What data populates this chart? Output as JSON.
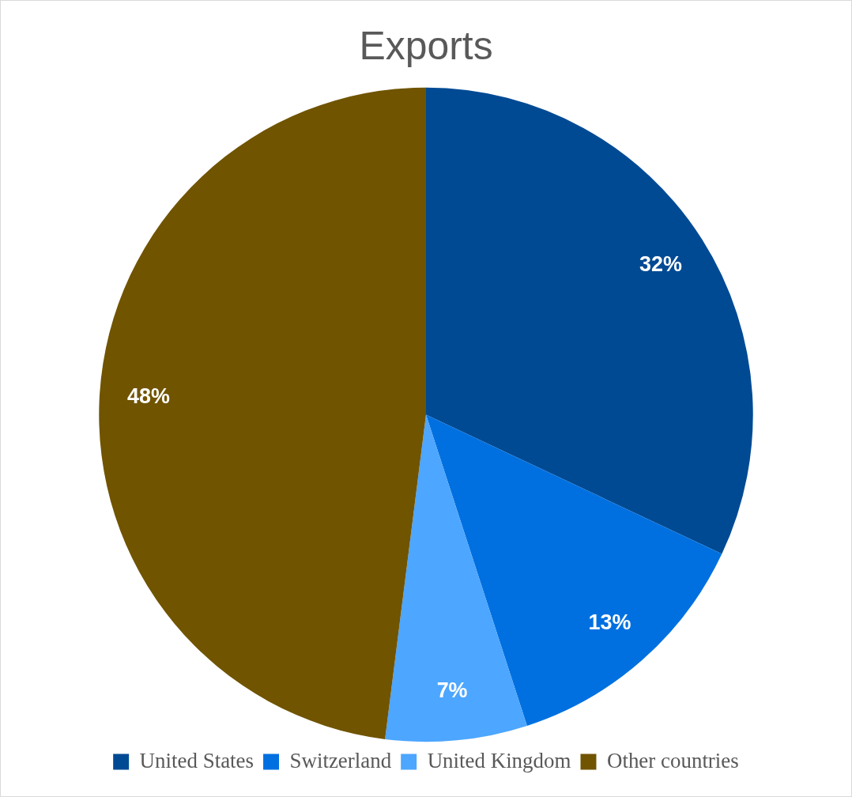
{
  "chart_data": {
    "type": "pie",
    "title": "Exports",
    "categories": [
      "United States",
      "Switzerland",
      "United Kingdom",
      "Other countries"
    ],
    "values": [
      32,
      13,
      7,
      48
    ],
    "colors": [
      "#004a94",
      "#0070e0",
      "#4da6ff",
      "#705400"
    ],
    "value_labels": [
      "32%",
      "13%",
      "7%",
      "48%"
    ],
    "legend": "bottom"
  }
}
